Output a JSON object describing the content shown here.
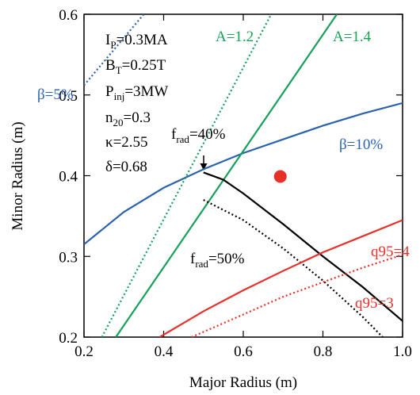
{
  "chart_data": {
    "type": "line",
    "x_label": "Major Radius (m)",
    "y_label": "Minor Radius (m)",
    "xlim": [
      0.2,
      1.0
    ],
    "ylim": [
      0.2,
      0.6
    ],
    "xticks": [
      0.2,
      0.4,
      0.6,
      0.8,
      {
        "value": 1.0,
        "label": "1.0"
      }
    ],
    "yticks": [
      0.2,
      0.3,
      0.4,
      0.5,
      0.6
    ],
    "series": [
      {
        "name": "β=5%",
        "color": "#2b62ad",
        "dash": "dotted",
        "x": [
          0.2,
          0.35
        ],
        "values": [
          0.512,
          0.6
        ]
      },
      {
        "name": "β=10%",
        "color": "#2b62ad",
        "dash": "solid",
        "x": [
          0.2,
          0.3,
          0.4,
          0.5,
          0.6,
          0.7,
          0.8,
          0.9,
          1.0
        ],
        "values": [
          0.315,
          0.355,
          0.385,
          0.408,
          0.428,
          0.445,
          0.462,
          0.477,
          0.49
        ]
      },
      {
        "name": "A=1.2",
        "color": "#16a05a",
        "dash": "dotted",
        "x": [
          0.245,
          0.67
        ],
        "values": [
          0.2,
          0.6
        ]
      },
      {
        "name": "A=1.4",
        "color": "#16a05a",
        "dash": "solid",
        "x": [
          0.28,
          0.835
        ],
        "values": [
          0.2,
          0.6
        ]
      },
      {
        "color": "#000000",
        "dash": "solid",
        "x": [
          0.5,
          0.55,
          0.6,
          0.7,
          0.8,
          0.9,
          1.0
        ],
        "values": [
          0.404,
          0.395,
          0.378,
          0.34,
          0.3,
          0.262,
          0.22
        ]
      },
      {
        "color": "#000000",
        "dash": "dotted",
        "x": [
          0.5,
          0.6,
          0.7,
          0.8,
          0.9,
          0.95
        ],
        "values": [
          0.37,
          0.345,
          0.31,
          0.27,
          0.225,
          0.2
        ]
      },
      {
        "name": "q95=4",
        "color": "#e8302a",
        "dash": "solid",
        "x": [
          0.39,
          0.5,
          0.6,
          0.7,
          0.8,
          0.9,
          1.0
        ],
        "values": [
          0.2,
          0.232,
          0.258,
          0.282,
          0.305,
          0.325,
          0.345
        ]
      },
      {
        "name": "q95=3",
        "color": "#e8302a",
        "dash": "dotted",
        "x": [
          0.47,
          0.6,
          0.7,
          0.8,
          0.9,
          1.0
        ],
        "values": [
          0.2,
          0.228,
          0.25,
          0.268,
          0.286,
          0.302
        ]
      },
      {
        "color": "#e8302a",
        "dash": "marker",
        "x": [
          0.693
        ],
        "values": [
          0.399
        ]
      }
    ],
    "annotations": [
      {
        "text": "I",
        "sub": "P",
        "after": "=0.3MA"
      },
      {
        "text": "B",
        "sub": "T",
        "after": "=0.25T"
      },
      {
        "text": "P",
        "sub": "inj",
        "after": "=3MW"
      },
      {
        "text": "n",
        "sub": "20",
        "after": "=0.3"
      },
      {
        "text": "κ=2.55"
      },
      {
        "text": "δ=0.68"
      },
      {
        "text": "f",
        "sub": "rad",
        "after": "=40%"
      },
      {
        "text": "f",
        "sub": "rad",
        "after": "=50%"
      }
    ]
  }
}
